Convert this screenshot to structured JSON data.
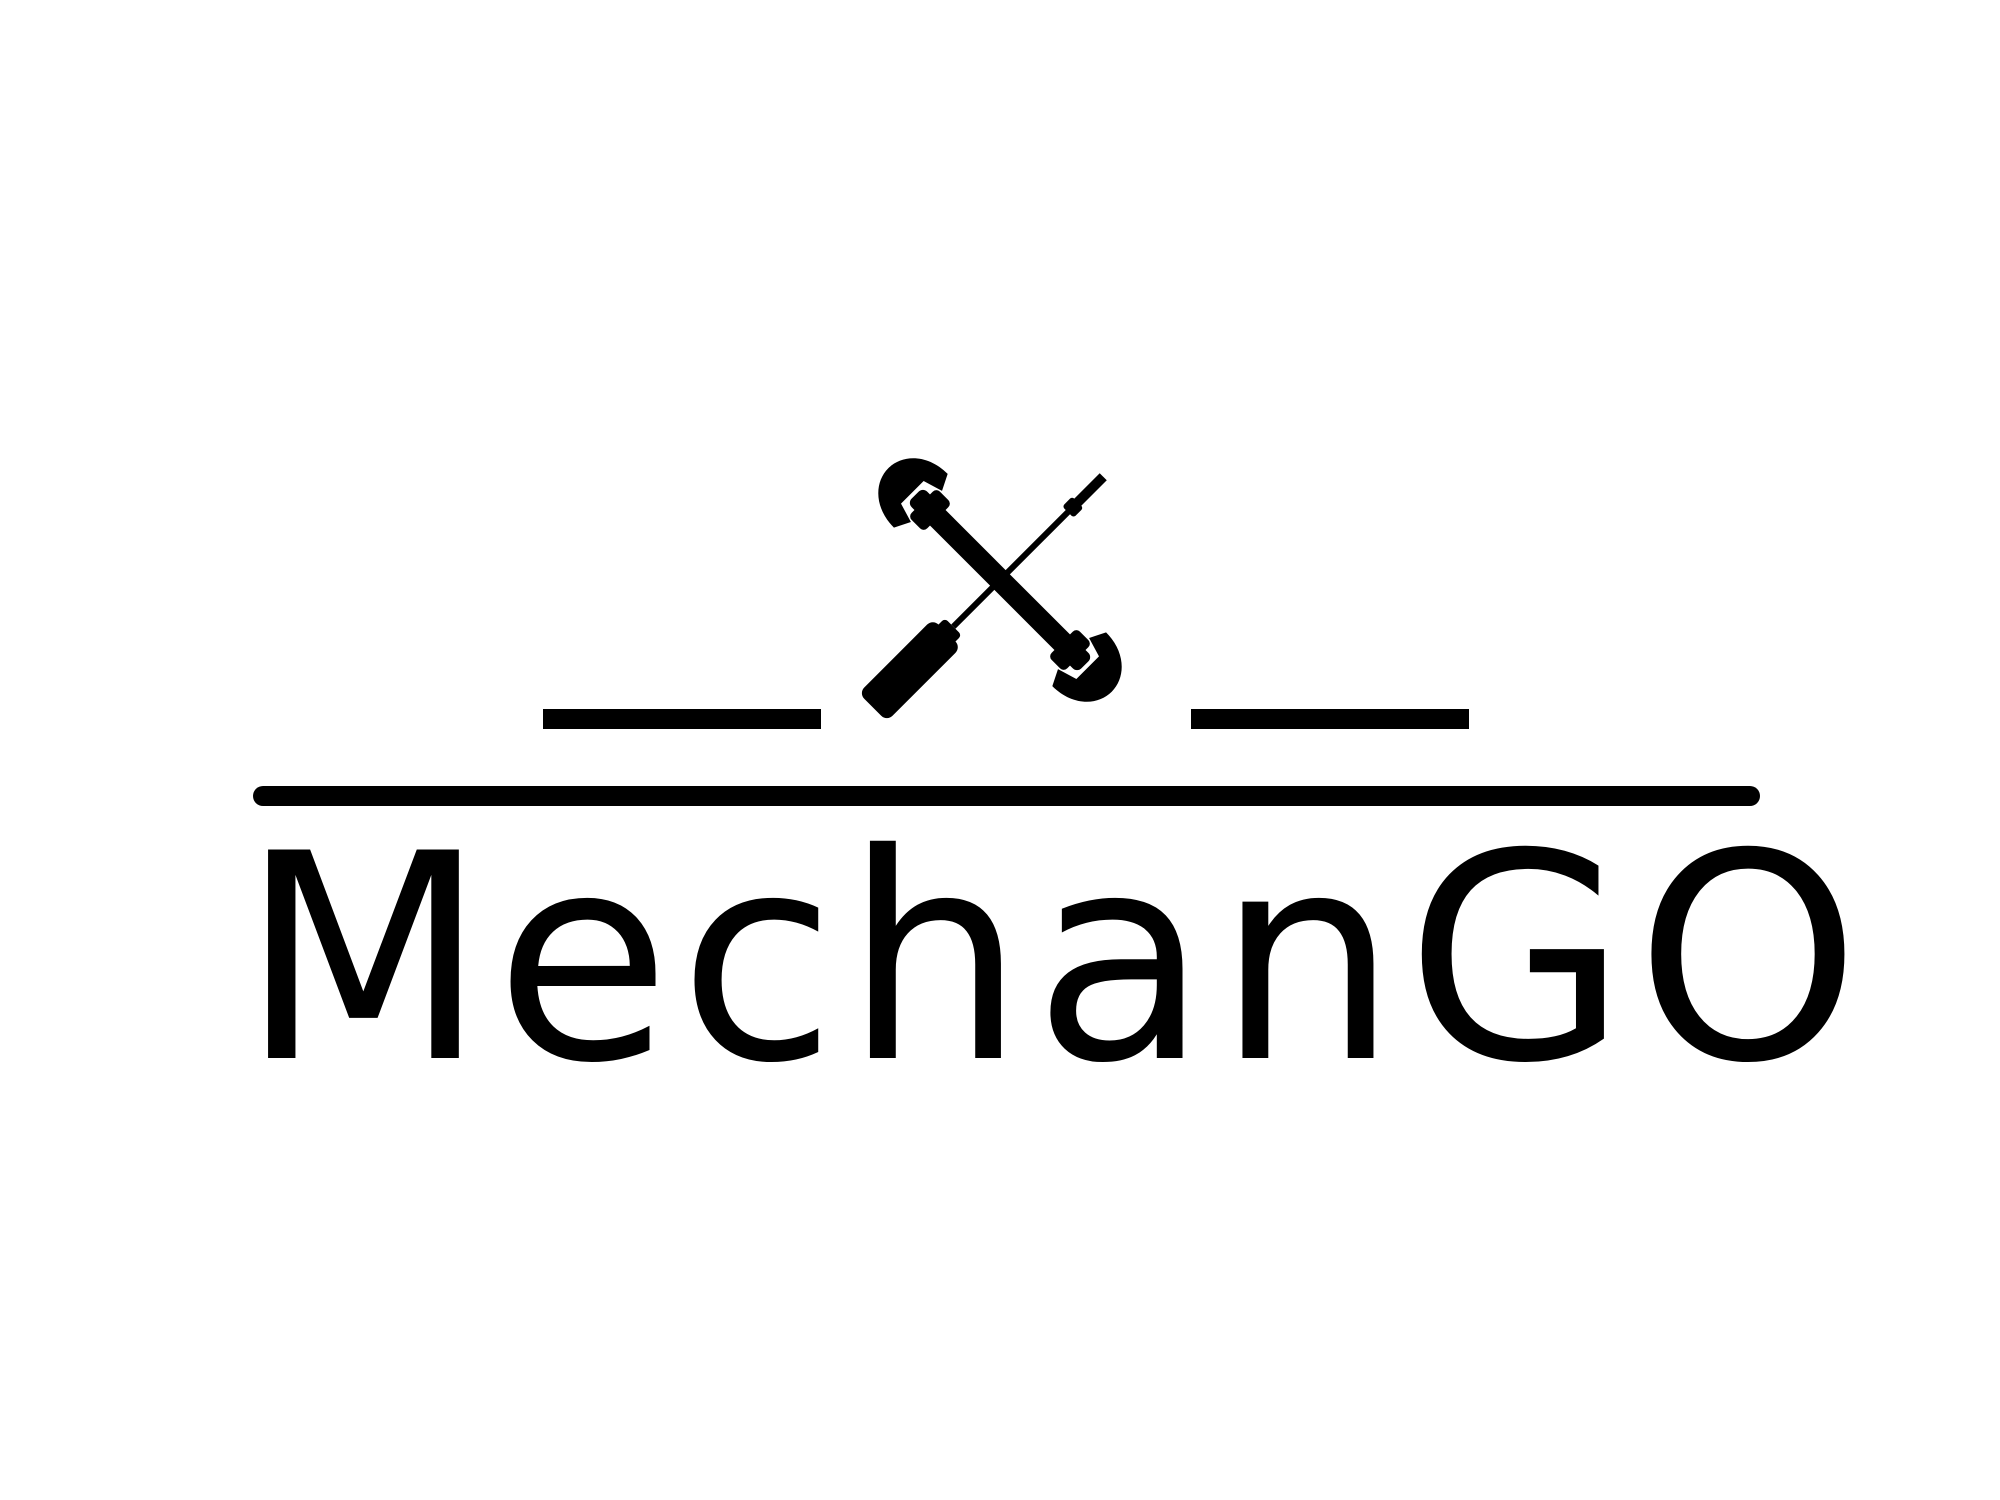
{
  "brand": {
    "name": "MechanGO"
  },
  "emblem": {
    "icons": [
      "wrench-icon",
      "screwdriver-icon"
    ]
  },
  "colors": {
    "background": "#ffffff",
    "ink": "#000000"
  }
}
